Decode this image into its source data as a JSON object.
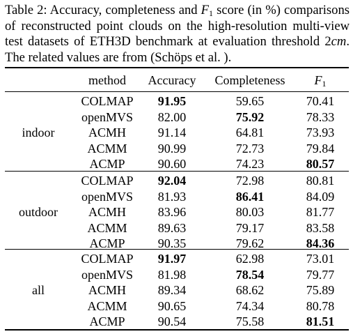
{
  "caption": {
    "prefix": "Table 2: Accuracy, completeness and ",
    "f1_base": "F",
    "f1_sub": "1",
    "mid": " score (in %) comparisons of reconstructed point clouds on the high-resolution multi-view test datasets of ETH3D benchmark at evaluation threshold ",
    "threshold_num": "2",
    "threshold_unit": "cm",
    "suffix": ". The related values are from (Schöps et al. )."
  },
  "table": {
    "headers": {
      "method": "method",
      "accuracy": "Accuracy",
      "completeness": "Completeness",
      "f1_base": "F",
      "f1_sub": "1"
    },
    "groups": [
      {
        "name": "indoor",
        "rows": [
          {
            "method": "COLMAP",
            "accuracy": "91.95",
            "completeness": "59.65",
            "f1": "70.41",
            "bold": "accuracy"
          },
          {
            "method": "openMVS",
            "accuracy": "82.00",
            "completeness": "75.92",
            "f1": "78.33",
            "bold": "completeness"
          },
          {
            "method": "ACMH",
            "accuracy": "91.14",
            "completeness": "64.81",
            "f1": "73.93",
            "bold": ""
          },
          {
            "method": "ACMM",
            "accuracy": "90.99",
            "completeness": "72.73",
            "f1": "79.84",
            "bold": ""
          },
          {
            "method": "ACMP",
            "accuracy": "90.60",
            "completeness": "74.23",
            "f1": "80.57",
            "bold": "f1"
          }
        ]
      },
      {
        "name": "outdoor",
        "rows": [
          {
            "method": "COLMAP",
            "accuracy": "92.04",
            "completeness": "72.98",
            "f1": "80.81",
            "bold": "accuracy"
          },
          {
            "method": "openMVS",
            "accuracy": "81.93",
            "completeness": "86.41",
            "f1": "84.09",
            "bold": "completeness"
          },
          {
            "method": "ACMH",
            "accuracy": "83.96",
            "completeness": "80.03",
            "f1": "81.77",
            "bold": ""
          },
          {
            "method": "ACMM",
            "accuracy": "89.63",
            "completeness": "79.17",
            "f1": "83.58",
            "bold": ""
          },
          {
            "method": "ACMP",
            "accuracy": "90.35",
            "completeness": "79.62",
            "f1": "84.36",
            "bold": "f1"
          }
        ]
      },
      {
        "name": "all",
        "rows": [
          {
            "method": "COLMAP",
            "accuracy": "91.97",
            "completeness": "62.98",
            "f1": "73.01",
            "bold": "accuracy"
          },
          {
            "method": "openMVS",
            "accuracy": "81.98",
            "completeness": "78.54",
            "f1": "79.77",
            "bold": "completeness"
          },
          {
            "method": "ACMH",
            "accuracy": "89.34",
            "completeness": "68.62",
            "f1": "75.89",
            "bold": ""
          },
          {
            "method": "ACMM",
            "accuracy": "90.65",
            "completeness": "74.34",
            "f1": "80.78",
            "bold": ""
          },
          {
            "method": "ACMP",
            "accuracy": "90.54",
            "completeness": "75.58",
            "f1": "81.51",
            "bold": "f1"
          }
        ]
      }
    ]
  }
}
